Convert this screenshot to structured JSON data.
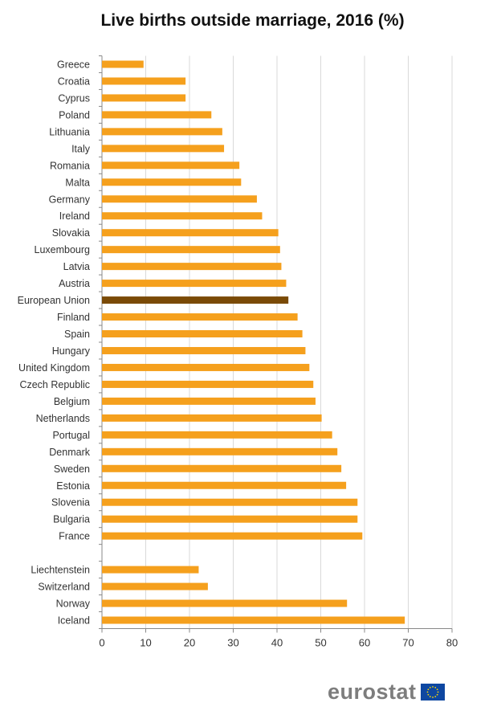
{
  "chart_data": {
    "type": "bar",
    "orientation": "horizontal",
    "title": "Live births outside marriage, 2016 (%)",
    "categories": [
      "Greece",
      "Croatia",
      "Cyprus",
      "Poland",
      "Lithuania",
      "Italy",
      "Romania",
      "Malta",
      "Germany",
      "Ireland",
      "Slovakia",
      "Luxembourg",
      "Latvia",
      "Austria",
      "European Union",
      "Finland",
      "Spain",
      "Hungary",
      "United Kingdom",
      "Czech Republic",
      "Belgium",
      "Netherlands",
      "Portugal",
      "Denmark",
      "Sweden",
      "Estonia",
      "Slovenia",
      "Bulgaria",
      "France",
      "",
      "Liechtenstein",
      "Switzerland",
      "Norway",
      "Iceland"
    ],
    "values": [
      9.5,
      19.1,
      19.1,
      25.0,
      27.5,
      27.9,
      31.4,
      31.8,
      35.4,
      36.6,
      40.3,
      40.7,
      41.0,
      42.1,
      42.6,
      44.7,
      45.8,
      46.5,
      47.4,
      48.3,
      48.8,
      50.2,
      52.6,
      53.8,
      54.7,
      55.8,
      58.4,
      58.4,
      59.5,
      null,
      22.1,
      24.2,
      56.0,
      69.2
    ],
    "highlight": "European Union",
    "xlim": [
      0,
      80
    ],
    "xticks": [
      "0",
      "10",
      "20",
      "30",
      "40",
      "50",
      "60",
      "70",
      "80"
    ],
    "grid": true,
    "colors": {
      "bar": "#f5a01d",
      "highlight": "#7a4a06",
      "grid": "#d9d9d9"
    }
  },
  "branding": {
    "logo": "eurostat",
    "logo_color": "#7d7d7d",
    "flag_color": "#0e47a1"
  }
}
